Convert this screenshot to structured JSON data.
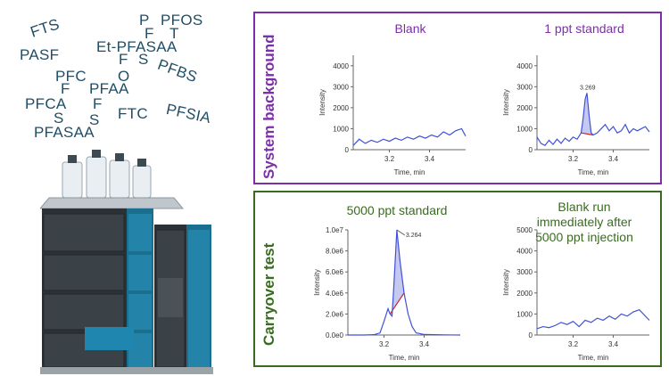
{
  "words": [
    {
      "text": "FTS",
      "rot": -18
    },
    {
      "text": "PASF",
      "rot": 0
    },
    {
      "text": "P",
      "rot": 0
    },
    {
      "text": "PFOS",
      "rot": 0
    },
    {
      "text": "F",
      "rot": 0
    },
    {
      "text": "T",
      "rot": 0
    },
    {
      "text": "Et-PFASAA",
      "rot": 0
    },
    {
      "text": "F",
      "rot": 0
    },
    {
      "text": "S",
      "rot": 0
    },
    {
      "text": "PFC",
      "rot": 0
    },
    {
      "text": "O",
      "rot": 0
    },
    {
      "text": "PFBS",
      "rot": 20
    },
    {
      "text": "F",
      "rot": 0
    },
    {
      "text": "PFAA",
      "rot": 0
    },
    {
      "text": "PFCA",
      "rot": 0
    },
    {
      "text": "F",
      "rot": 0
    },
    {
      "text": "FTC",
      "rot": 0
    },
    {
      "text": "PFSIA",
      "rot": 12
    },
    {
      "text": "S",
      "rot": 0
    },
    {
      "text": "S",
      "rot": 0
    },
    {
      "text": "PFASAA",
      "rot": 0
    }
  ],
  "colors": {
    "word": "#1f4e66",
    "system_border": "#7b2fa8",
    "carryover_border": "#3a6b22",
    "trace": "#3f51d6",
    "fill": "#c5c9f2",
    "baseline": "#c62828"
  },
  "panels": {
    "system": {
      "label": "System background"
    },
    "carryover": {
      "label": "Carryover test"
    }
  },
  "chart_data": [
    {
      "type": "line",
      "title": "Blank",
      "xlabel": "Time, min",
      "ylabel": "Intensity",
      "xticks": [
        "3.2",
        "3.4"
      ],
      "xrange": [
        3.02,
        3.58
      ],
      "yticks": [
        "0",
        "1000",
        "2000",
        "3000",
        "4000"
      ],
      "ylim": [
        0,
        4500
      ],
      "series": [
        {
          "x": [
            3.02,
            3.05,
            3.08,
            3.11,
            3.14,
            3.17,
            3.2,
            3.23,
            3.26,
            3.29,
            3.32,
            3.35,
            3.38,
            3.41,
            3.44,
            3.47,
            3.5,
            3.53,
            3.56,
            3.58
          ],
          "y": [
            200,
            500,
            300,
            450,
            350,
            500,
            400,
            550,
            450,
            600,
            500,
            650,
            550,
            700,
            600,
            850,
            700,
            900,
            1000,
            650
          ]
        }
      ]
    },
    {
      "type": "line",
      "title": "1 ppt standard",
      "xlabel": "Time, min",
      "ylabel": "Intensity",
      "xticks": [
        "3.2",
        "3.4"
      ],
      "xrange": [
        3.02,
        3.58
      ],
      "yticks": [
        "0",
        "1000",
        "2000",
        "3000",
        "4000"
      ],
      "ylim": [
        0,
        4500
      ],
      "peak": {
        "label": "3.269",
        "x": 3.269,
        "y": 2700
      },
      "series": [
        {
          "x": [
            3.02,
            3.04,
            3.06,
            3.08,
            3.1,
            3.12,
            3.14,
            3.16,
            3.18,
            3.2,
            3.22,
            3.24,
            3.25,
            3.26,
            3.269,
            3.28,
            3.29,
            3.3,
            3.32,
            3.34,
            3.36,
            3.38,
            3.4,
            3.42,
            3.44,
            3.46,
            3.48,
            3.5,
            3.52,
            3.54,
            3.56,
            3.58
          ],
          "y": [
            600,
            300,
            200,
            450,
            250,
            500,
            300,
            550,
            400,
            600,
            500,
            800,
            1500,
            2400,
            2700,
            1600,
            800,
            700,
            800,
            1000,
            1200,
            900,
            1100,
            800,
            900,
            1200,
            800,
            1000,
            900,
            1000,
            1100,
            850
          ]
        }
      ]
    },
    {
      "type": "line",
      "title": "5000 ppt standard",
      "xlabel": "Time, min",
      "ylabel": "Intensity",
      "xticks": [
        "3.2",
        "3.4"
      ],
      "xrange": [
        3.02,
        3.58
      ],
      "yticks": [
        "0.0e0",
        "2.0e6",
        "4.0e6",
        "6.0e6",
        "8.0e6",
        "1.0e7"
      ],
      "ylim": [
        0,
        10000000
      ],
      "peak": {
        "label": "3.264",
        "x": 3.264,
        "y": 10000000
      },
      "series": [
        {
          "x": [
            3.02,
            3.1,
            3.15,
            3.18,
            3.2,
            3.22,
            3.23,
            3.24,
            3.25,
            3.264,
            3.28,
            3.3,
            3.32,
            3.34,
            3.36,
            3.4,
            3.5,
            3.58
          ],
          "y": [
            0,
            0,
            30000,
            200000,
            1300000,
            2500000,
            2000000,
            1800000,
            5000000,
            10000000,
            7000000,
            4000000,
            2000000,
            800000,
            200000,
            50000,
            10000,
            0
          ]
        }
      ]
    },
    {
      "type": "line",
      "title": "Blank run immediately after 5000 ppt injection",
      "xlabel": "Time, min",
      "ylabel": "Intensity",
      "xticks": [
        "3.2",
        "3.4"
      ],
      "xrange": [
        3.02,
        3.58
      ],
      "yticks": [
        "0",
        "1000",
        "2000",
        "3000",
        "4000",
        "5000"
      ],
      "ylim": [
        0,
        5000
      ],
      "series": [
        {
          "x": [
            3.02,
            3.05,
            3.08,
            3.11,
            3.14,
            3.17,
            3.2,
            3.23,
            3.26,
            3.29,
            3.32,
            3.35,
            3.38,
            3.41,
            3.44,
            3.47,
            3.5,
            3.53,
            3.56,
            3.58
          ],
          "y": [
            300,
            400,
            350,
            450,
            600,
            500,
            650,
            400,
            700,
            600,
            800,
            700,
            900,
            750,
            1000,
            900,
            1100,
            1200,
            900,
            700
          ]
        }
      ]
    }
  ],
  "titles_display": [
    [
      "Blank"
    ],
    [
      "1 ppt standard"
    ],
    [
      "5000 ppt standard"
    ],
    [
      "Blank run",
      "immediately after",
      "5000 ppt injection"
    ]
  ]
}
